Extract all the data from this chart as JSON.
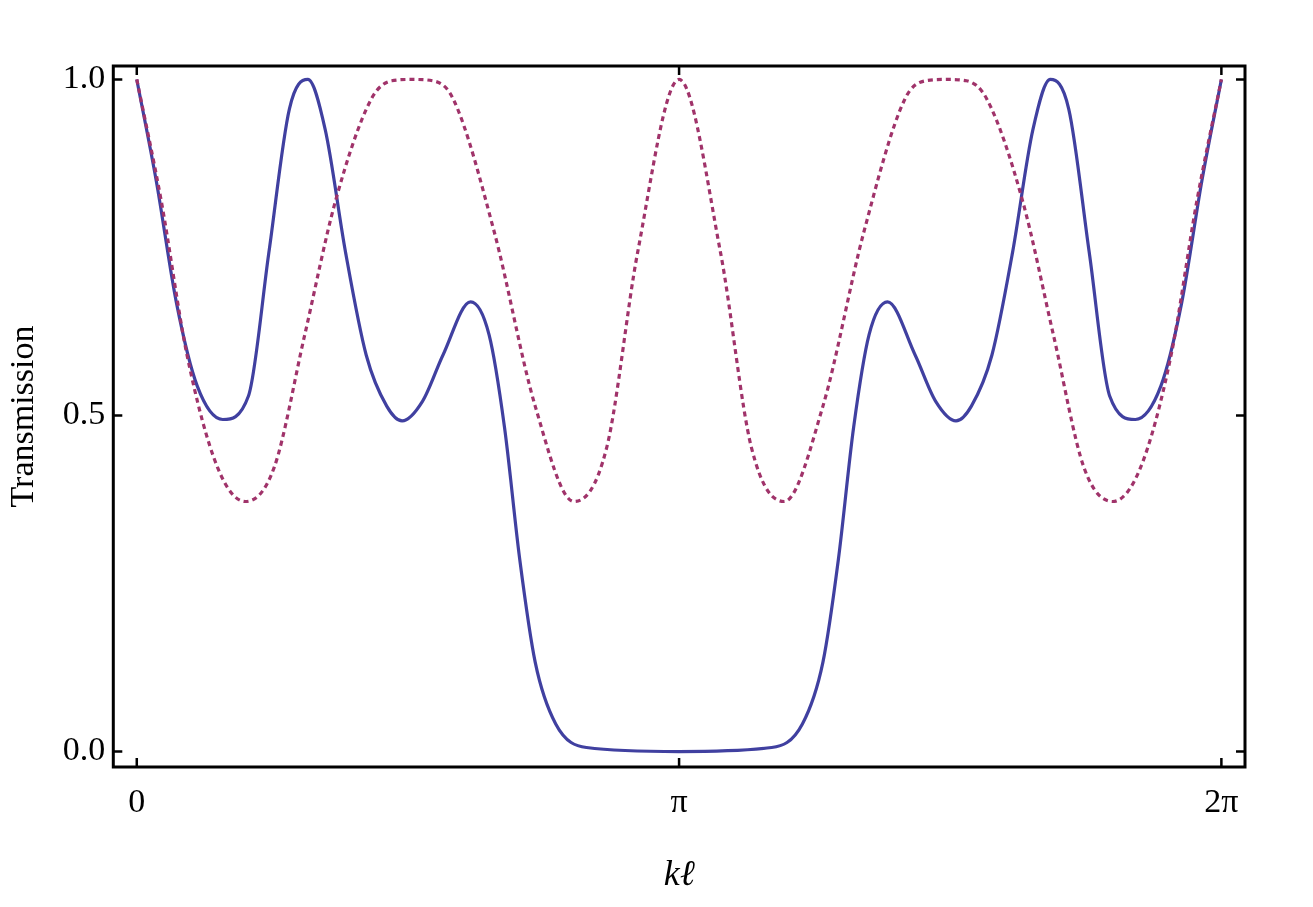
{
  "chart_data": {
    "type": "line",
    "xlabel": "kℓ",
    "ylabel": "Transmission",
    "xlim": [
      -0.136,
      6.42
    ],
    "ylim": [
      -0.023,
      1.02
    ],
    "xticks": [
      {
        "value": 0,
        "label": "0"
      },
      {
        "value": 3.1416,
        "label": "π"
      },
      {
        "value": 6.2832,
        "label": "2π"
      }
    ],
    "yticks": [
      {
        "value": 0,
        "label": "0.0"
      },
      {
        "value": 0.5,
        "label": "0.5"
      },
      {
        "value": 1,
        "label": "1.0"
      }
    ],
    "grid": false,
    "legend": false,
    "marker": "none",
    "series": [
      {
        "color": "#4040a0",
        "line_style": "solid",
        "x": [
          0,
          0.113,
          0.231,
          0.35,
          0.498,
          0.647,
          0.765,
          0.884,
          0.991,
          1.092,
          1.21,
          1.329,
          1.448,
          1.537,
          1.655,
          1.774,
          1.934,
          2.041,
          2.13,
          2.219,
          2.308,
          2.427,
          2.605,
          3.1416,
          3.678,
          3.856,
          3.975,
          4.064,
          4.153,
          4.242,
          4.349,
          4.509,
          4.628,
          4.746,
          4.835,
          4.954,
          5.073,
          5.191,
          5.292,
          5.399,
          5.518,
          5.636,
          5.785,
          5.933,
          6.052,
          6.17,
          6.2832
        ],
        "values": [
          1.0,
          0.849,
          0.666,
          0.544,
          0.494,
          0.529,
          0.742,
          0.956,
          1.0,
          0.925,
          0.742,
          0.59,
          0.514,
          0.492,
          0.521,
          0.59,
          0.669,
          0.62,
          0.483,
          0.285,
          0.133,
          0.041,
          0.006,
          0,
          0.006,
          0.041,
          0.133,
          0.285,
          0.483,
          0.62,
          0.669,
          0.59,
          0.521,
          0.492,
          0.514,
          0.59,
          0.742,
          0.925,
          1.0,
          0.956,
          0.742,
          0.529,
          0.494,
          0.544,
          0.666,
          0.849,
          1.0
        ]
      },
      {
        "color": "#a0336a",
        "line_style": "dashed",
        "x": [
          0,
          0.142,
          0.291,
          0.469,
          0.629,
          0.795,
          0.973,
          1.151,
          1.359,
          1.477,
          1.596,
          1.715,
          1.833,
          2.071,
          2.308,
          2.533,
          2.723,
          2.901,
          3.1416,
          3.382,
          3.56,
          3.75,
          3.975,
          4.212,
          4.45,
          4.568,
          4.687,
          4.806,
          4.924,
          5.132,
          5.31,
          5.488,
          5.654,
          5.814,
          5.992,
          6.141,
          6.2832
        ],
        "values": [
          1.0,
          0.819,
          0.59,
          0.422,
          0.372,
          0.422,
          0.62,
          0.819,
          0.971,
          0.998,
          1.0,
          0.998,
          0.971,
          0.773,
          0.514,
          0.372,
          0.453,
          0.742,
          1.0,
          0.742,
          0.453,
          0.372,
          0.514,
          0.773,
          0.971,
          0.998,
          1.0,
          0.998,
          0.971,
          0.819,
          0.62,
          0.422,
          0.372,
          0.422,
          0.59,
          0.819,
          1.0
        ]
      }
    ]
  }
}
